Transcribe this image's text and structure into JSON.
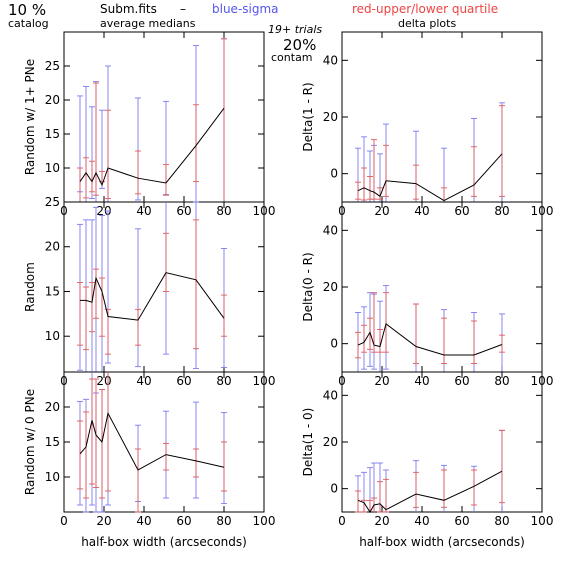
{
  "header": {
    "pct": "10 %",
    "catalog": "catalog",
    "fname": "Subm.fits",
    "dash": "–",
    "blue_label": "blue-sigma",
    "red_label": "red-upper/lower quartile",
    "avg": "average medians",
    "trials": "19+ trials",
    "pct2": "20%",
    "contam": "contam",
    "delta": "delta plots"
  },
  "colors": {
    "median": "#000000",
    "sigma": "#7b7bf0",
    "quartile": "#e05a5a"
  },
  "chart_data": [
    {
      "type": "line",
      "panel": "left-1",
      "xlabel": "",
      "ylabel": "Random w/ 1+ PNe",
      "xlim": [
        0,
        100
      ],
      "ylim": [
        5,
        30
      ],
      "xticks": [
        0,
        20,
        40,
        60,
        80,
        100
      ],
      "yticks": [
        10,
        15,
        20,
        25
      ],
      "x": [
        8,
        11,
        14,
        16,
        19,
        22,
        37,
        51,
        66,
        80
      ],
      "values": [
        8,
        9.3,
        8,
        9.3,
        7.5,
        10,
        8.5,
        7.8,
        13.3,
        18.8
      ],
      "sigma": [
        [
          6.5,
          20.6
        ],
        [
          4,
          22
        ],
        [
          5.5,
          19
        ],
        [
          5,
          22.7
        ],
        [
          7,
          18.5
        ],
        [
          3,
          25
        ],
        [
          5.3,
          20.3
        ],
        [
          6.1,
          19.8
        ],
        [
          5,
          28
        ],
        [
          0,
          29
        ]
      ],
      "quartile": [
        [
          5,
          10
        ],
        [
          5.6,
          11.5
        ],
        [
          6.5,
          11
        ],
        [
          6,
          22.5
        ],
        [
          8,
          9.5
        ],
        [
          5.5,
          18.5
        ],
        [
          6.2,
          12.5
        ],
        [
          6,
          10.5
        ],
        [
          8,
          19.3
        ],
        [
          5,
          29
        ]
      ]
    },
    {
      "type": "line",
      "panel": "right-1",
      "xlabel": "",
      "ylabel": "Delta(1 - R)",
      "xlim": [
        0,
        100
      ],
      "ylim": [
        -10,
        50
      ],
      "xticks": [
        0,
        20,
        40,
        60,
        80,
        100
      ],
      "yticks": [
        0,
        20,
        40
      ],
      "x": [
        8,
        11,
        14,
        16,
        19,
        22,
        37,
        51,
        66,
        80
      ],
      "values": [
        -6,
        -5,
        -6,
        -6.5,
        -8,
        -2.5,
        -3.5,
        -9.5,
        -4,
        7
      ],
      "sigma": [
        [
          -13,
          9
        ],
        [
          -15,
          13
        ],
        [
          -13,
          8
        ],
        [
          -12,
          10
        ],
        [
          -14,
          7
        ],
        [
          -13,
          17.5
        ],
        [
          -12,
          15
        ],
        [
          -14,
          9
        ],
        [
          -12,
          19.5
        ],
        [
          -12,
          25
        ]
      ],
      "quartile": [
        [
          -9,
          -3
        ],
        [
          -9.3,
          2
        ],
        [
          -9,
          -1
        ],
        [
          -9,
          12
        ],
        [
          -9,
          -5
        ],
        [
          -8,
          10
        ],
        [
          -9,
          3
        ],
        [
          -10,
          -5
        ],
        [
          -8,
          9.5
        ],
        [
          -8,
          24
        ]
      ]
    },
    {
      "type": "line",
      "panel": "left-2",
      "xlabel": "",
      "ylabel": "Random",
      "xlim": [
        0,
        100
      ],
      "ylim": [
        6,
        25
      ],
      "xticks": [
        0,
        20,
        40,
        60,
        80,
        100
      ],
      "yticks": [
        10,
        15,
        20,
        25
      ],
      "x": [
        8,
        11,
        14,
        16,
        19,
        22,
        37,
        51,
        66,
        80
      ],
      "values": [
        14,
        14,
        13.8,
        16.5,
        15,
        12.2,
        11.8,
        17.1,
        16.3,
        12
      ],
      "sigma": [
        [
          6.2,
          22.5
        ],
        [
          6,
          23
        ],
        [
          6,
          23
        ],
        [
          6,
          24.4
        ],
        [
          5,
          23.5
        ],
        [
          7,
          24
        ],
        [
          6.6,
          22
        ],
        [
          8,
          25.6
        ],
        [
          6.4,
          25
        ],
        [
          6.5,
          19.8
        ]
      ],
      "quartile": [
        [
          9,
          16
        ],
        [
          8.5,
          15.5
        ],
        [
          10.5,
          16
        ],
        [
          12,
          17.5
        ],
        [
          10,
          16.5
        ],
        [
          8,
          13
        ],
        [
          9,
          13
        ],
        [
          15,
          21.5
        ],
        [
          8.6,
          23
        ],
        [
          10,
          14.6
        ]
      ]
    },
    {
      "type": "line",
      "panel": "right-2",
      "xlabel": "",
      "ylabel": "Delta(0 - R)",
      "xlim": [
        0,
        100
      ],
      "ylim": [
        -10,
        50
      ],
      "xticks": [
        0,
        20,
        40,
        60,
        80,
        100
      ],
      "yticks": [
        0,
        20,
        40
      ],
      "x": [
        8,
        11,
        14,
        16,
        19,
        22,
        37,
        51,
        66,
        80
      ],
      "values": [
        -0.5,
        0.5,
        4,
        -0.5,
        -1,
        7,
        -1,
        -4,
        -4,
        -0.3
      ],
      "sigma": [
        [
          -11,
          11
        ],
        [
          -9,
          13
        ],
        [
          -8,
          18
        ],
        [
          -9,
          17.5
        ],
        [
          -12,
          15
        ],
        [
          -9,
          20.5
        ],
        [
          -13,
          14
        ],
        [
          -11,
          12
        ],
        [
          -12,
          11
        ],
        [
          -11,
          10.5
        ]
      ],
      "quartile": [
        [
          -5,
          4
        ],
        [
          -3,
          6.5
        ],
        [
          -2,
          9
        ],
        [
          -3,
          18
        ],
        [
          -3,
          5
        ],
        [
          -3,
          18
        ],
        [
          -7,
          14
        ],
        [
          -7,
          9
        ],
        [
          -7,
          8
        ],
        [
          -3,
          3
        ]
      ]
    },
    {
      "type": "line",
      "panel": "left-3",
      "xlabel": "half-box width (arcseconds)",
      "ylabel": "Random w/ 0 PNe",
      "xlim": [
        0,
        100
      ],
      "ylim": [
        5,
        25
      ],
      "xticks": [
        0,
        20,
        40,
        60,
        80,
        100
      ],
      "yticks": [
        10,
        15,
        20
      ],
      "x": [
        8,
        11,
        14,
        16,
        19,
        22,
        37,
        51,
        66,
        80
      ],
      "values": [
        13.3,
        14.3,
        18.1,
        16,
        15,
        19.1,
        11,
        13.2,
        12.3,
        11.4
      ],
      "sigma": [
        [
          6,
          20.8
        ],
        [
          5,
          21.1
        ],
        [
          6,
          26
        ],
        [
          5,
          22
        ],
        [
          5,
          22.5
        ],
        [
          6,
          28
        ],
        [
          6.5,
          17.4
        ],
        [
          7,
          19.4
        ],
        [
          7,
          20.7
        ],
        [
          6.2,
          19.2
        ]
      ],
      "quartile": [
        [
          8.3,
          18
        ],
        [
          7,
          19.3
        ],
        [
          9,
          24
        ],
        [
          8.5,
          24
        ],
        [
          7,
          22.5
        ],
        [
          8,
          26.5
        ],
        [
          5,
          14
        ],
        [
          11,
          14.8
        ],
        [
          10,
          14
        ],
        [
          8,
          15
        ]
      ]
    },
    {
      "type": "line",
      "panel": "right-3",
      "xlabel": "half-box width (arcseconds)",
      "ylabel": "Delta(1 - 0)",
      "xlim": [
        0,
        100
      ],
      "ylim": [
        -10,
        50
      ],
      "xticks": [
        0,
        20,
        40,
        60,
        80,
        100
      ],
      "yticks": [
        0,
        20,
        40
      ],
      "x": [
        8,
        11,
        14,
        16,
        19,
        22,
        37,
        51,
        66,
        80
      ],
      "values": [
        -5,
        -6,
        -10,
        -7,
        -6.5,
        -9,
        -2.3,
        -5,
        1,
        7.5
      ],
      "sigma": [
        [
          -11,
          5.5
        ],
        [
          -11,
          7
        ],
        [
          -13,
          9
        ],
        [
          -11,
          11
        ],
        [
          -11,
          11
        ],
        [
          -12,
          8
        ],
        [
          -11,
          12
        ],
        [
          -12,
          10
        ],
        [
          -11,
          9.6
        ],
        [
          -13,
          25
        ]
      ],
      "quartile": [
        [
          -10,
          -1
        ],
        [
          -10,
          -5
        ],
        [
          -11,
          -5
        ],
        [
          -11,
          -4
        ],
        [
          -10,
          3
        ],
        [
          -10,
          4
        ],
        [
          -8,
          7
        ],
        [
          -8,
          8
        ],
        [
          -7,
          8
        ],
        [
          -6,
          25
        ]
      ]
    }
  ]
}
